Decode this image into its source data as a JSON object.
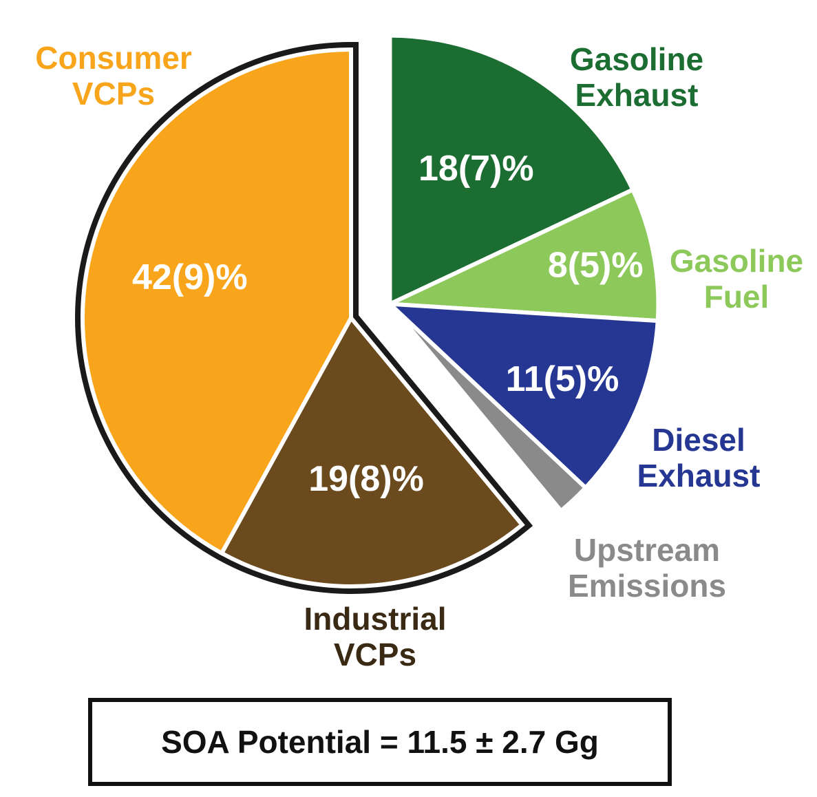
{
  "chart_data": {
    "type": "pie",
    "slices": [
      {
        "category": [
          "Consumer",
          "VCPs"
        ],
        "value": 42,
        "value_label": "42(9)%",
        "color": "#F9A51C",
        "label_color": "#F9A51C",
        "outlined": true
      },
      {
        "category": [
          "Industrial",
          "VCPs"
        ],
        "value": 19,
        "value_label": "19(8)%",
        "color": "#6B4A1E",
        "label_color": "#3A2A14",
        "outlined": true
      },
      {
        "category": [
          "Gasoline",
          "Exhaust"
        ],
        "value": 18,
        "value_label": "18(7)%",
        "color": "#1B6D32",
        "label_color": "#1B6D32",
        "outlined": false
      },
      {
        "category": [
          "Gasoline",
          "Fuel"
        ],
        "value": 8,
        "value_label": "8(5)%",
        "color": "#8CC95A",
        "label_color": "#8CC95A",
        "outlined": false
      },
      {
        "category": [
          "Diesel",
          "Exhaust"
        ],
        "value": 11,
        "value_label": "11(5)%",
        "color": "#253793",
        "label_color": "#253793",
        "outlined": false
      },
      {
        "category": [
          "Upstream",
          "Emissions"
        ],
        "value": 2,
        "value_label": "",
        "color": "#8A8A8A",
        "label_color": "#8A8A8A",
        "outlined": false
      }
    ],
    "outline_color": "#1a1a1a",
    "legend": "none"
  },
  "footer": {
    "text": "SOA Potential = 11.5 ± 2.7 Gg"
  }
}
